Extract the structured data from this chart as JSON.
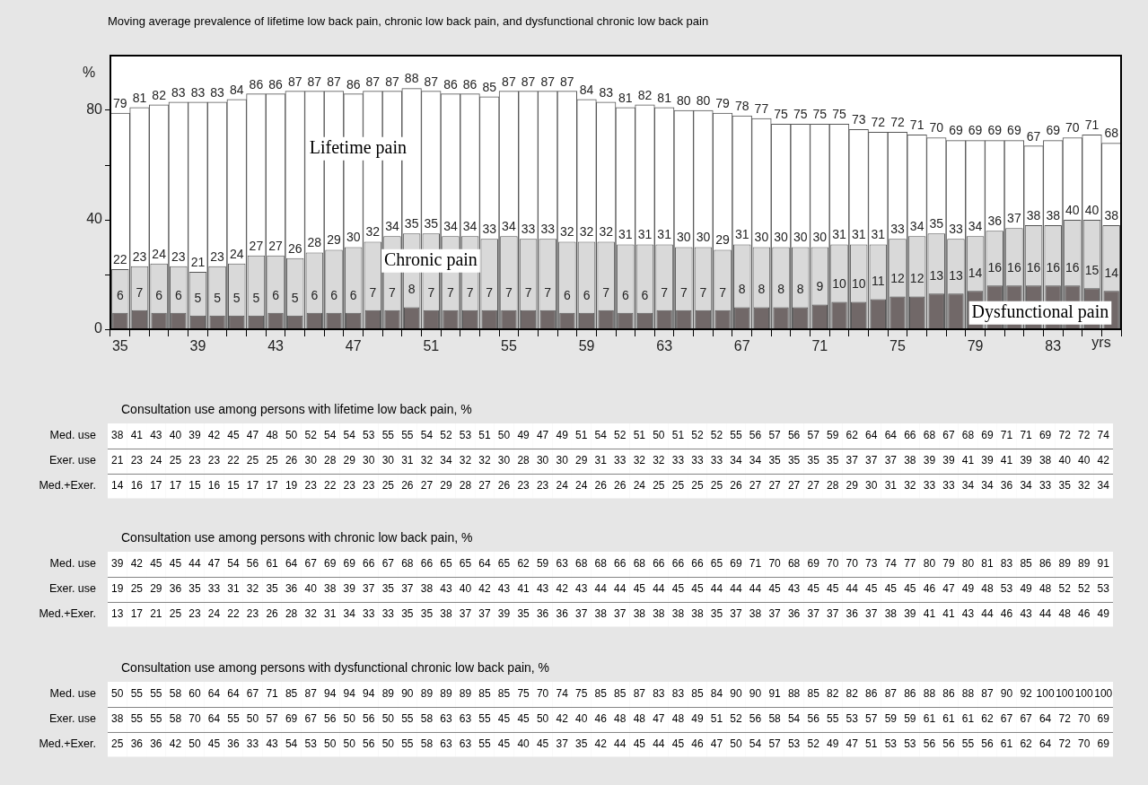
{
  "chart_data": [
    {
      "type": "bar",
      "title": "Moving average prevalence of lifetime low back pain, chronic low back pain, and dysfunctional chronic low back pain",
      "ylabel": "%",
      "xlabel": "yrs",
      "categories": [
        "35",
        null,
        null,
        null,
        "39",
        null,
        null,
        null,
        "43",
        null,
        null,
        null,
        "47",
        null,
        null,
        null,
        "51",
        null,
        null,
        null,
        "55",
        null,
        null,
        null,
        "59",
        null,
        null,
        null,
        "63",
        null,
        null,
        null,
        "67",
        null,
        null,
        null,
        "71",
        null,
        null,
        null,
        "75",
        null,
        null,
        null,
        "79",
        null,
        null,
        null,
        "83",
        null,
        null,
        null
      ],
      "series": [
        {
          "name": "Lifetime pain",
          "color": "#ffffff",
          "values": [
            79,
            81,
            82,
            83,
            83,
            83,
            84,
            86,
            86,
            87,
            87,
            87,
            86,
            87,
            87,
            88,
            87,
            86,
            86,
            85,
            87,
            87,
            87,
            87,
            84,
            83,
            81,
            82,
            81,
            80,
            80,
            79,
            78,
            77,
            75,
            75,
            75,
            75,
            73,
            72,
            72,
            71,
            70,
            69,
            69,
            69,
            69,
            67,
            69,
            70,
            71,
            68
          ]
        },
        {
          "name": "Chronic pain",
          "color": "#d9d9d9",
          "values": [
            22,
            23,
            24,
            23,
            21,
            23,
            24,
            27,
            27,
            26,
            28,
            29,
            30,
            32,
            34,
            35,
            35,
            34,
            34,
            33,
            34,
            33,
            33,
            32,
            32,
            32,
            31,
            31,
            31,
            30,
            30,
            29,
            31,
            30,
            30,
            30,
            30,
            31,
            31,
            31,
            33,
            34,
            35,
            33,
            34,
            36,
            37,
            38,
            38,
            40,
            40,
            38
          ]
        },
        {
          "name": "Dysfunctional pain",
          "color": "#716868",
          "values": [
            6,
            7,
            6,
            6,
            5,
            5,
            5,
            5,
            6,
            5,
            6,
            6,
            6,
            7,
            7,
            8,
            7,
            7,
            7,
            7,
            7,
            7,
            7,
            6,
            6,
            7,
            6,
            6,
            7,
            7,
            7,
            7,
            8,
            8,
            8,
            8,
            9,
            10,
            10,
            11,
            12,
            12,
            13,
            13,
            14,
            16,
            16,
            16,
            16,
            16,
            15,
            14
          ]
        }
      ],
      "ylim": [
        0,
        100
      ],
      "yticks": [
        0,
        {
          "value": 20,
          "label": null
        },
        40,
        {
          "value": 60,
          "label": null
        },
        80
      ],
      "data_labels": true
    },
    {
      "type": "heatmap",
      "title": "Consultation use among persons with lifetime low back pain, %",
      "data_labels": true,
      "categories": [
        null,
        null,
        null,
        null,
        null,
        null,
        null,
        null,
        null,
        null,
        null,
        null,
        null,
        null,
        null,
        null,
        null,
        null,
        null,
        null,
        null,
        null,
        null,
        null,
        null,
        null,
        null,
        null,
        null,
        null,
        null,
        null,
        null,
        null,
        null,
        null,
        null,
        null,
        null,
        null,
        null,
        null,
        null,
        null,
        null,
        null,
        null,
        null,
        null,
        null,
        null,
        null
      ],
      "y_categories": [
        "Med. use",
        "Exer. use",
        "Med.+Exer."
      ],
      "cells": [
        [
          38,
          41,
          43,
          40,
          39,
          42,
          45,
          47,
          48,
          50,
          52,
          54,
          54,
          53,
          55,
          55,
          54,
          52,
          53,
          51,
          50,
          49,
          47,
          49,
          51,
          54,
          52,
          51,
          50,
          51,
          52,
          52,
          55,
          56,
          57,
          56,
          57,
          59,
          62,
          64,
          64,
          66,
          68,
          67,
          68,
          69,
          71,
          71,
          69,
          72,
          72,
          74
        ],
        [
          21,
          23,
          24,
          25,
          23,
          23,
          22,
          25,
          25,
          26,
          30,
          28,
          29,
          30,
          30,
          31,
          32,
          34,
          32,
          32,
          30,
          28,
          30,
          30,
          29,
          31,
          33,
          32,
          32,
          33,
          33,
          33,
          34,
          34,
          35,
          35,
          35,
          35,
          37,
          37,
          37,
          38,
          39,
          39,
          41,
          39,
          41,
          39,
          38,
          40,
          40,
          42
        ],
        [
          14,
          16,
          17,
          17,
          15,
          16,
          15,
          17,
          17,
          19,
          23,
          22,
          23,
          23,
          25,
          26,
          27,
          29,
          28,
          27,
          26,
          23,
          23,
          24,
          24,
          26,
          26,
          24,
          25,
          25,
          25,
          25,
          26,
          27,
          27,
          27,
          27,
          28,
          29,
          30,
          31,
          32,
          33,
          33,
          34,
          34,
          36,
          34,
          33,
          35,
          32,
          34
        ]
      ]
    },
    {
      "type": "heatmap",
      "title": "Consultation use among persons with chronic low back pain, %",
      "data_labels": true,
      "categories": [
        null,
        null,
        null,
        null,
        null,
        null,
        null,
        null,
        null,
        null,
        null,
        null,
        null,
        null,
        null,
        null,
        null,
        null,
        null,
        null,
        null,
        null,
        null,
        null,
        null,
        null,
        null,
        null,
        null,
        null,
        null,
        null,
        null,
        null,
        null,
        null,
        null,
        null,
        null,
        null,
        null,
        null,
        null,
        null,
        null,
        null,
        null,
        null,
        null,
        null,
        null,
        null
      ],
      "y_categories": [
        "Med. use",
        "Exer. use",
        "Med.+Exer."
      ],
      "cells": [
        [
          39,
          42,
          45,
          45,
          44,
          47,
          54,
          56,
          61,
          64,
          67,
          69,
          69,
          66,
          67,
          68,
          66,
          65,
          65,
          64,
          65,
          62,
          59,
          63,
          68,
          68,
          66,
          68,
          66,
          66,
          66,
          65,
          69,
          71,
          70,
          68,
          69,
          70,
          70,
          73,
          74,
          77,
          80,
          79,
          80,
          81,
          83,
          85,
          86,
          89,
          89,
          91
        ],
        [
          19,
          25,
          29,
          36,
          35,
          33,
          31,
          32,
          35,
          36,
          40,
          38,
          39,
          37,
          35,
          37,
          38,
          43,
          40,
          42,
          43,
          41,
          43,
          42,
          43,
          44,
          44,
          45,
          44,
          45,
          45,
          44,
          44,
          44,
          45,
          43,
          45,
          45,
          44,
          45,
          45,
          45,
          46,
          47,
          49,
          48,
          53,
          49,
          48,
          52,
          52,
          53
        ],
        [
          13,
          17,
          21,
          25,
          23,
          24,
          22,
          23,
          26,
          28,
          32,
          31,
          34,
          33,
          33,
          35,
          35,
          38,
          37,
          37,
          39,
          35,
          36,
          36,
          37,
          38,
          37,
          38,
          38,
          38,
          38,
          35,
          37,
          38,
          37,
          36,
          37,
          37,
          36,
          37,
          38,
          39,
          41,
          41,
          43,
          44,
          46,
          43,
          44,
          48,
          46,
          49
        ]
      ]
    },
    {
      "type": "heatmap",
      "title": "Consultation use among persons with dysfunctional chronic low back pain, %",
      "data_labels": true,
      "categories": [
        null,
        null,
        null,
        null,
        null,
        null,
        null,
        null,
        null,
        null,
        null,
        null,
        null,
        null,
        null,
        null,
        null,
        null,
        null,
        null,
        null,
        null,
        null,
        null,
        null,
        null,
        null,
        null,
        null,
        null,
        null,
        null,
        null,
        null,
        null,
        null,
        null,
        null,
        null,
        null,
        null,
        null,
        null,
        null,
        null,
        null,
        null,
        null,
        null,
        null,
        null,
        null
      ],
      "y_categories": [
        "Med. use",
        "Exer. use",
        "Med.+Exer."
      ],
      "cells": [
        [
          50,
          55,
          55,
          58,
          60,
          64,
          64,
          67,
          71,
          85,
          87,
          94,
          94,
          94,
          89,
          90,
          89,
          89,
          89,
          85,
          85,
          75,
          70,
          74,
          75,
          85,
          85,
          87,
          83,
          83,
          85,
          84,
          90,
          90,
          91,
          88,
          85,
          82,
          82,
          86,
          87,
          86,
          88,
          86,
          88,
          87,
          90,
          92,
          100,
          100,
          100,
          100
        ],
        [
          38,
          55,
          55,
          58,
          70,
          64,
          55,
          50,
          57,
          69,
          67,
          56,
          50,
          56,
          50,
          55,
          58,
          63,
          63,
          55,
          45,
          45,
          50,
          42,
          40,
          46,
          48,
          48,
          47,
          48,
          49,
          51,
          52,
          56,
          58,
          54,
          56,
          55,
          53,
          57,
          59,
          59,
          61,
          61,
          61,
          62,
          67,
          67,
          64,
          72,
          70,
          69
        ],
        [
          25,
          36,
          36,
          42,
          50,
          45,
          36,
          33,
          43,
          54,
          53,
          50,
          50,
          56,
          50,
          55,
          58,
          63,
          63,
          55,
          45,
          40,
          45,
          37,
          35,
          42,
          44,
          45,
          44,
          45,
          46,
          47,
          50,
          54,
          57,
          53,
          52,
          49,
          47,
          51,
          53,
          53,
          56,
          56,
          55,
          56,
          61,
          62,
          64,
          72,
          70,
          69
        ]
      ]
    }
  ]
}
